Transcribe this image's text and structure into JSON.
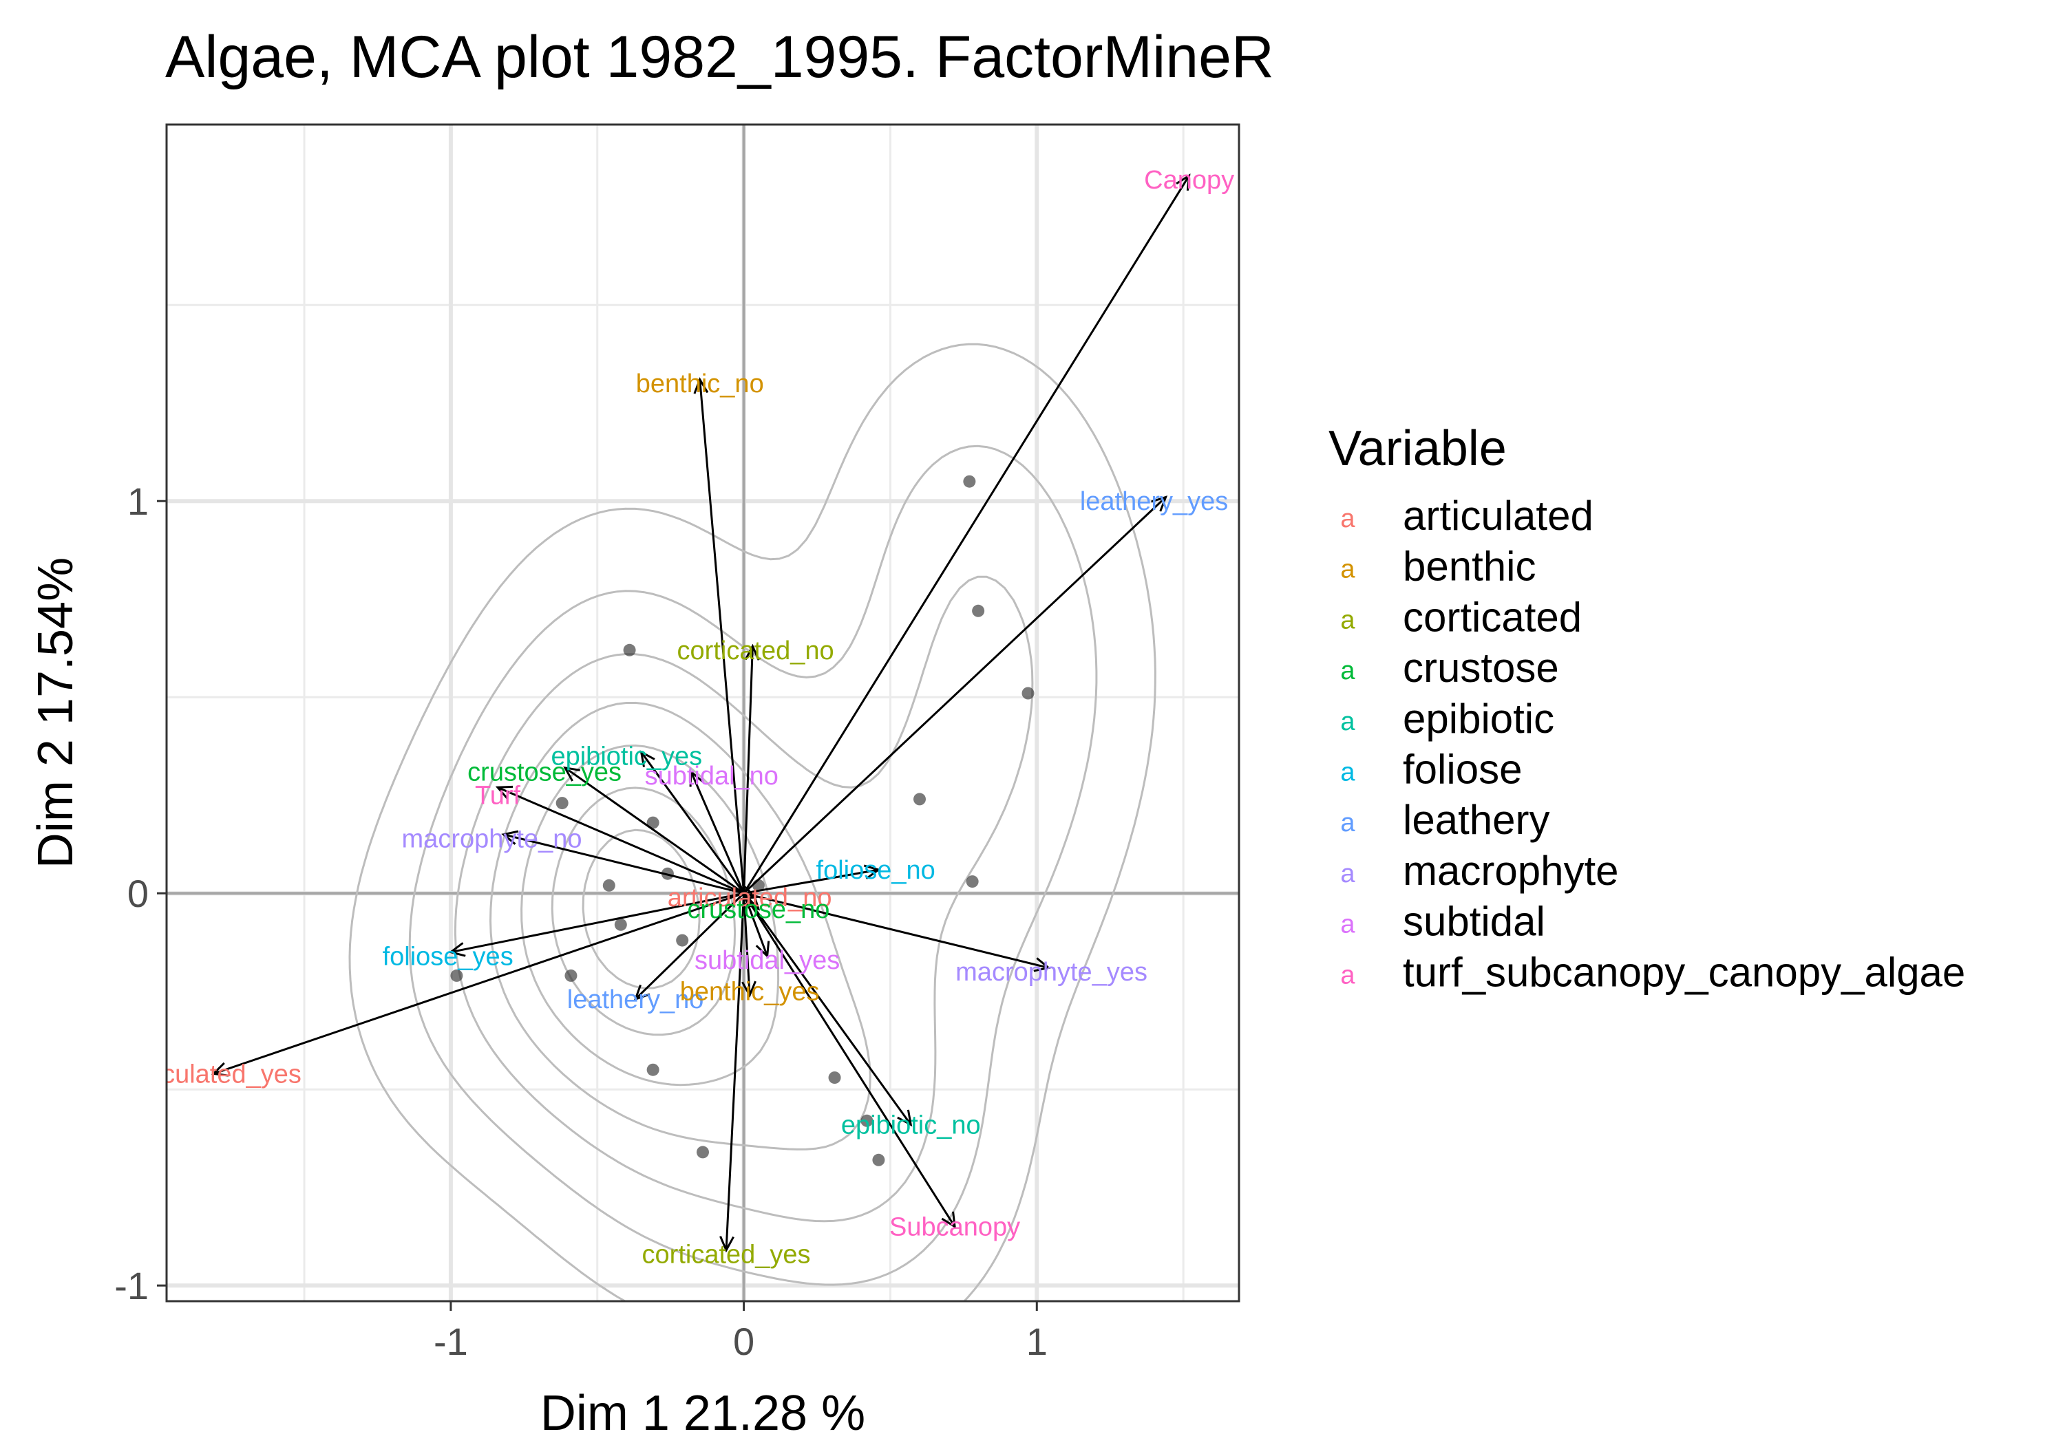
{
  "chart_data": {
    "type": "scatter",
    "title": "Algae, MCA plot 1982_1995. FactorMineR",
    "xlabel": "Dim 1 21.28 %",
    "ylabel": "Dim 2 17.54%",
    "xlim": [
      -1.97,
      1.69
    ],
    "ylim": [
      -1.04,
      1.96
    ],
    "x_ticks": [
      -1,
      0,
      1
    ],
    "y_ticks": [
      -1,
      0,
      1
    ],
    "x_tick_labels": [
      "-1",
      "0",
      "1"
    ],
    "y_tick_labels": [
      "-1",
      "0",
      "1"
    ],
    "grid": true,
    "legend": {
      "title": "Variable",
      "position": "right",
      "key_glyph": "a",
      "entries": [
        {
          "name": "articulated",
          "color": "#F8766D"
        },
        {
          "name": "benthic",
          "color": "#D39200"
        },
        {
          "name": "corticated",
          "color": "#93AA00"
        },
        {
          "name": "crustose",
          "color": "#00BA38"
        },
        {
          "name": "epibiotic",
          "color": "#00C19F"
        },
        {
          "name": "foliose",
          "color": "#00B9E3"
        },
        {
          "name": "leathery",
          "color": "#619CFF"
        },
        {
          "name": "macrophyte",
          "color": "#A58AFF"
        },
        {
          "name": "subtidal",
          "color": "#DB72FB"
        },
        {
          "name": "turf_subcanopy_canopy_algae",
          "color": "#FF61C3"
        }
      ]
    },
    "category_arrows": [
      {
        "label": "Canopy",
        "group": "turf_subcanopy_canopy_algae",
        "x": 1.52,
        "y": 1.83,
        "lx": 1.52,
        "ly": 1.82
      },
      {
        "label": "benthic_no",
        "group": "benthic",
        "x": -0.15,
        "y": 1.31,
        "lx": -0.15,
        "ly": 1.3
      },
      {
        "label": "leathery_yes",
        "group": "leathery",
        "x": 1.44,
        "y": 1.01,
        "lx": 1.4,
        "ly": 1.0
      },
      {
        "label": "corticated_no",
        "group": "corticated",
        "x": 0.03,
        "y": 0.63,
        "lx": 0.04,
        "ly": 0.62
      },
      {
        "label": "epibiotic_yes",
        "group": "epibiotic",
        "x": -0.35,
        "y": 0.36,
        "lx": -0.4,
        "ly": 0.35
      },
      {
        "label": "crustose_yes",
        "group": "crustose",
        "x": -0.61,
        "y": 0.32,
        "lx": -0.68,
        "ly": 0.31
      },
      {
        "label": "subtidal_no",
        "group": "subtidal",
        "x": -0.18,
        "y": 0.31,
        "lx": -0.11,
        "ly": 0.3
      },
      {
        "label": "Turf",
        "group": "turf_subcanopy_canopy_algae",
        "x": -0.84,
        "y": 0.27,
        "lx": -0.84,
        "ly": 0.25
      },
      {
        "label": "macrophyte_no",
        "group": "macrophyte",
        "x": -0.82,
        "y": 0.15,
        "lx": -0.86,
        "ly": 0.14
      },
      {
        "label": "foliose_no",
        "group": "foliose",
        "x": 0.46,
        "y": 0.06,
        "lx": 0.45,
        "ly": 0.06
      },
      {
        "label": "articulated_no",
        "group": "articulated",
        "x": 0.04,
        "y": -0.01,
        "lx": 0.02,
        "ly": -0.01
      },
      {
        "label": "crustose_no",
        "group": "crustose",
        "x": 0.05,
        "y": -0.04,
        "lx": 0.05,
        "ly": -0.04
      },
      {
        "label": "foliose_yes",
        "group": "foliose",
        "x": -1.0,
        "y": -0.15,
        "lx": -1.01,
        "ly": -0.16
      },
      {
        "label": "subtidal_yes",
        "group": "subtidal",
        "x": 0.08,
        "y": -0.16,
        "lx": 0.08,
        "ly": -0.17
      },
      {
        "label": "macrophyte_yes",
        "group": "macrophyte",
        "x": 1.04,
        "y": -0.19,
        "lx": 1.05,
        "ly": -0.2
      },
      {
        "label": "leathery_no",
        "group": "leathery",
        "x": -0.37,
        "y": -0.27,
        "lx": -0.37,
        "ly": -0.27
      },
      {
        "label": "benthic_yes",
        "group": "benthic",
        "x": 0.02,
        "y": -0.26,
        "lx": 0.02,
        "ly": -0.25
      },
      {
        "label": "articulated_yes",
        "group": "articulated",
        "x": -1.81,
        "y": -0.46,
        "lx": -1.81,
        "ly": -0.46
      },
      {
        "label": "epibiotic_no",
        "group": "epibiotic",
        "x": 0.57,
        "y": -0.59,
        "lx": 0.57,
        "ly": -0.59
      },
      {
        "label": "Subcanopy",
        "group": "turf_subcanopy_canopy_algae",
        "x": 0.72,
        "y": -0.85,
        "lx": 0.72,
        "ly": -0.85
      },
      {
        "label": "corticated_yes",
        "group": "corticated",
        "x": -0.06,
        "y": -0.91,
        "lx": -0.06,
        "ly": -0.92
      }
    ],
    "individuals": [
      [
        0.77,
        1.05
      ],
      [
        0.8,
        0.72
      ],
      [
        0.97,
        0.51
      ],
      [
        -0.39,
        0.62
      ],
      [
        0.6,
        0.24
      ],
      [
        0.78,
        0.03
      ],
      [
        -0.62,
        0.23
      ],
      [
        -0.31,
        0.18
      ],
      [
        -0.46,
        0.02
      ],
      [
        -0.26,
        0.05
      ],
      [
        -0.42,
        -0.08
      ],
      [
        -0.98,
        -0.21
      ],
      [
        -0.59,
        -0.21
      ],
      [
        -0.31,
        -0.45
      ],
      [
        0.31,
        -0.47
      ],
      [
        0.42,
        -0.58
      ],
      [
        0.46,
        -0.68
      ],
      [
        -0.14,
        -0.66
      ],
      [
        -0.21,
        -0.12
      ],
      [
        0.05,
        0.02
      ]
    ]
  }
}
